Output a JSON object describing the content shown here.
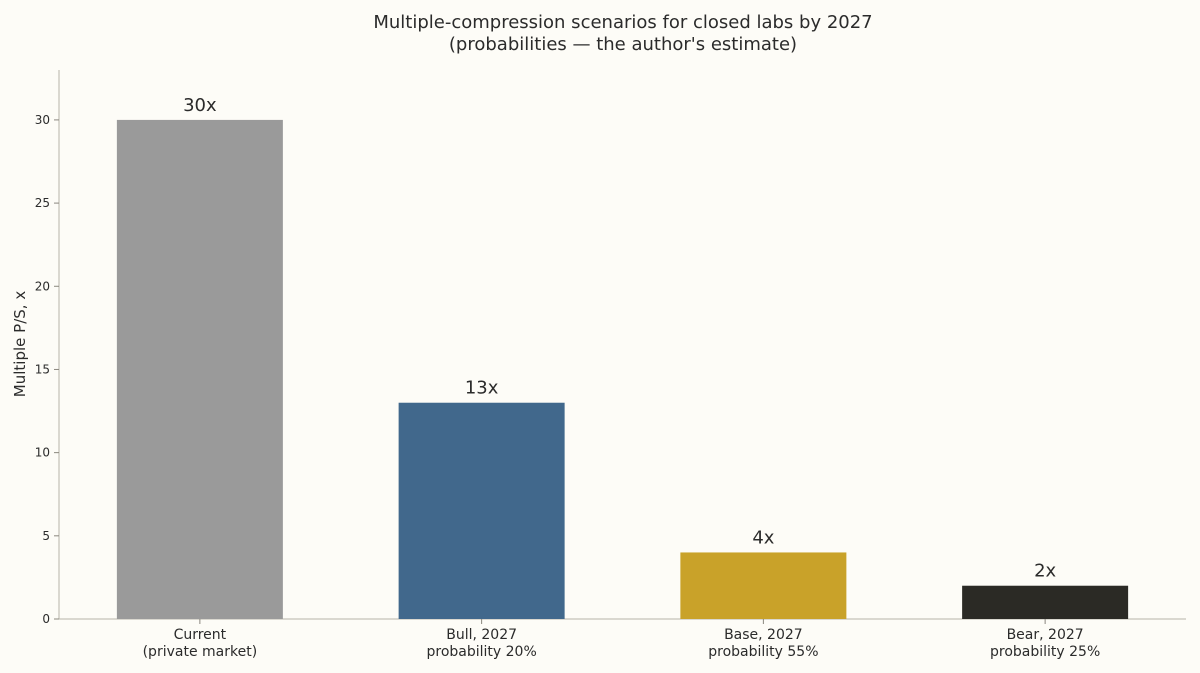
{
  "chart_data": {
    "type": "bar",
    "title": [
      "Multiple-compression scenarios for closed labs by 2027",
      "(probabilities — the author's estimate)"
    ],
    "ylabel": "Multiple P/S, x",
    "xlabel": "",
    "ylim": [
      0,
      33
    ],
    "yticks": [
      0,
      5,
      10,
      15,
      20,
      25,
      30
    ],
    "grid": false,
    "categories": [
      [
        "Current",
        "(private market)"
      ],
      [
        "Bull, 2027",
        "probability 20%"
      ],
      [
        "Base, 2027",
        "probability 55%"
      ],
      [
        "Bear, 2027",
        "probability 25%"
      ]
    ],
    "values": [
      30,
      13,
      4,
      2
    ],
    "data_labels": [
      "30x",
      "13x",
      "4x",
      "2x"
    ],
    "colors": [
      "#9a9a9a",
      "#41688c",
      "#c9a229",
      "#2b2a25"
    ]
  }
}
